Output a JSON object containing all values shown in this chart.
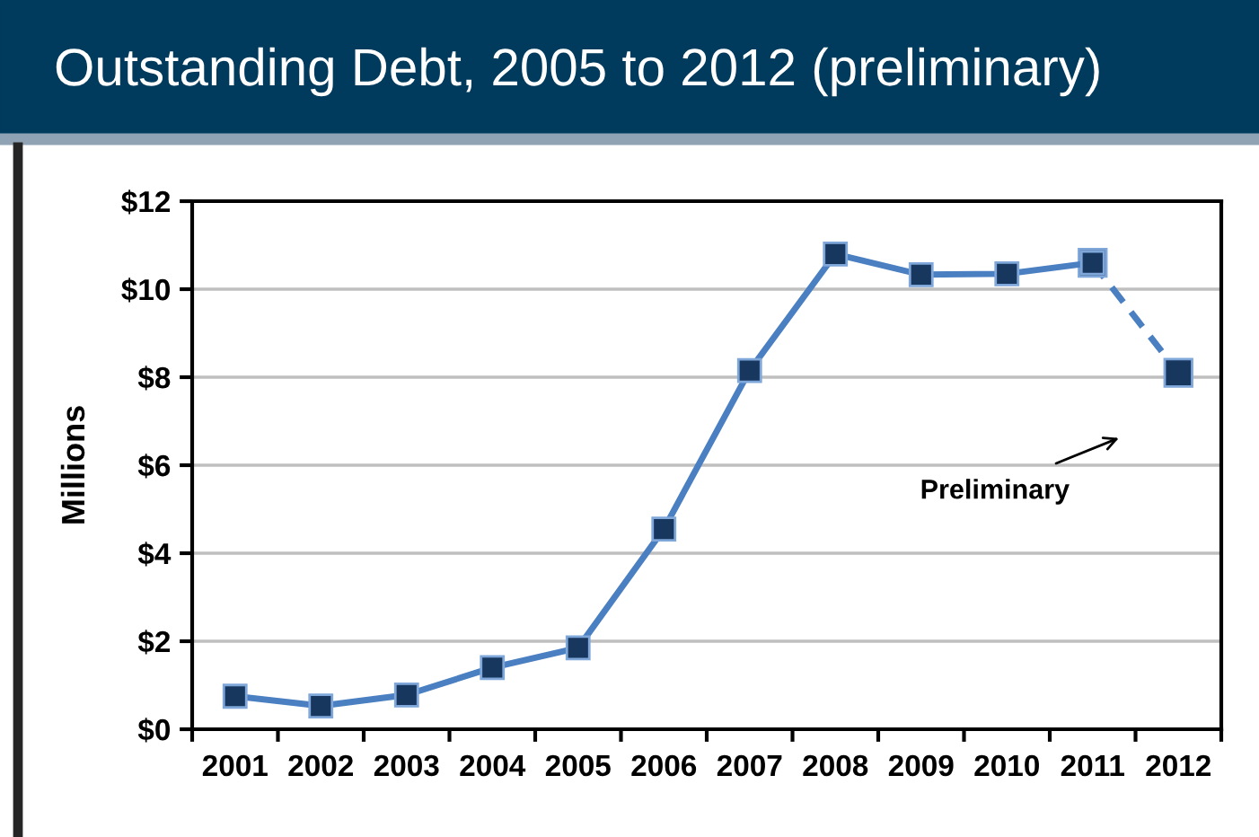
{
  "chart_data": {
    "type": "line",
    "title": "Outstanding Debt, 2005 to 2012 (preliminary)",
    "ylabel": "Millions",
    "categories": [
      "2001",
      "2002",
      "2003",
      "2004",
      "2005",
      "2006",
      "2007",
      "2008",
      "2009",
      "2010",
      "2011",
      "2012"
    ],
    "series": [
      {
        "color": "#4a7fc1",
        "line_style": "solid",
        "values": [
          0.75,
          0.53,
          0.78,
          1.4,
          1.85,
          4.55,
          8.15,
          10.8,
          10.33,
          10.35,
          10.6,
          null
        ]
      },
      {
        "color": "#4a7fc1",
        "line_style": "dashed",
        "values": [
          null,
          null,
          null,
          null,
          null,
          null,
          null,
          null,
          null,
          null,
          10.6,
          8.1
        ]
      }
    ],
    "marker": "square",
    "ylim": [
      0,
      12
    ],
    "yticks": [
      {
        "value": 0,
        "label": "$0"
      },
      {
        "value": 2,
        "label": "$2"
      },
      {
        "value": 4,
        "label": "$4"
      },
      {
        "value": 6,
        "label": "$6"
      },
      {
        "value": 8,
        "label": "$8"
      },
      {
        "value": 10,
        "label": "$10"
      },
      {
        "value": 12,
        "label": "$12"
      }
    ],
    "grid": "y",
    "legend": false,
    "annotations": [
      "Preliminary"
    ]
  }
}
